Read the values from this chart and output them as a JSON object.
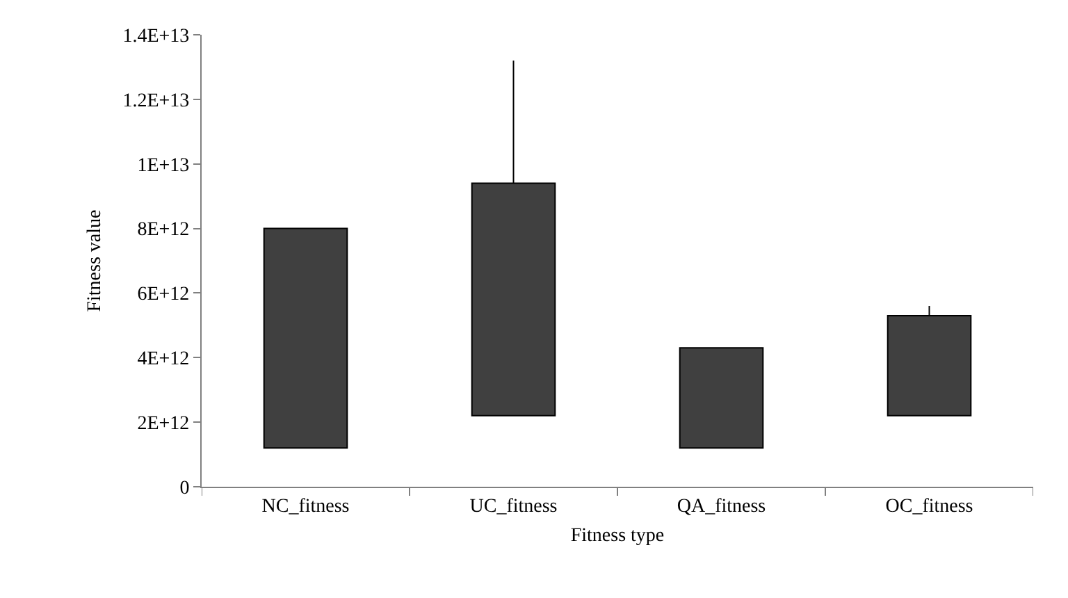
{
  "chart_data": {
    "type": "bar",
    "xlabel": "Fitness type",
    "ylabel": "Fitness value",
    "categories": [
      "NC_fitness",
      "UC_fitness",
      "QA_fitness",
      "OC_fitness"
    ],
    "values": [
      6800000000000.0,
      7200000000000.0,
      3100000000000.0,
      3100000000000.0
    ],
    "base": [
      1200000000000.0,
      2200000000000.0,
      1200000000000.0,
      2200000000000.0
    ],
    "errors": [
      null,
      [
        9400000000000.0,
        13200000000000.0
      ],
      null,
      [
        5300000000000.0,
        5600000000000.0
      ]
    ],
    "color": "#404040",
    "ylim": [
      0,
      14000000000000.0
    ],
    "yticks": [
      0,
      {
        "value": 2000000000000.0,
        "label": "2E+12"
      },
      {
        "value": 4000000000000.0,
        "label": "4E+12"
      },
      {
        "value": 6000000000000.0,
        "label": "6E+12"
      },
      {
        "value": 8000000000000.0,
        "label": "8E+12"
      },
      {
        "value": 10000000000000.0,
        "label": "1E+13"
      },
      {
        "value": 12000000000000.0,
        "label": "1.2E+13"
      },
      {
        "value": 14000000000000.0,
        "label": "1.4E+13"
      }
    ],
    "grid": false
  }
}
